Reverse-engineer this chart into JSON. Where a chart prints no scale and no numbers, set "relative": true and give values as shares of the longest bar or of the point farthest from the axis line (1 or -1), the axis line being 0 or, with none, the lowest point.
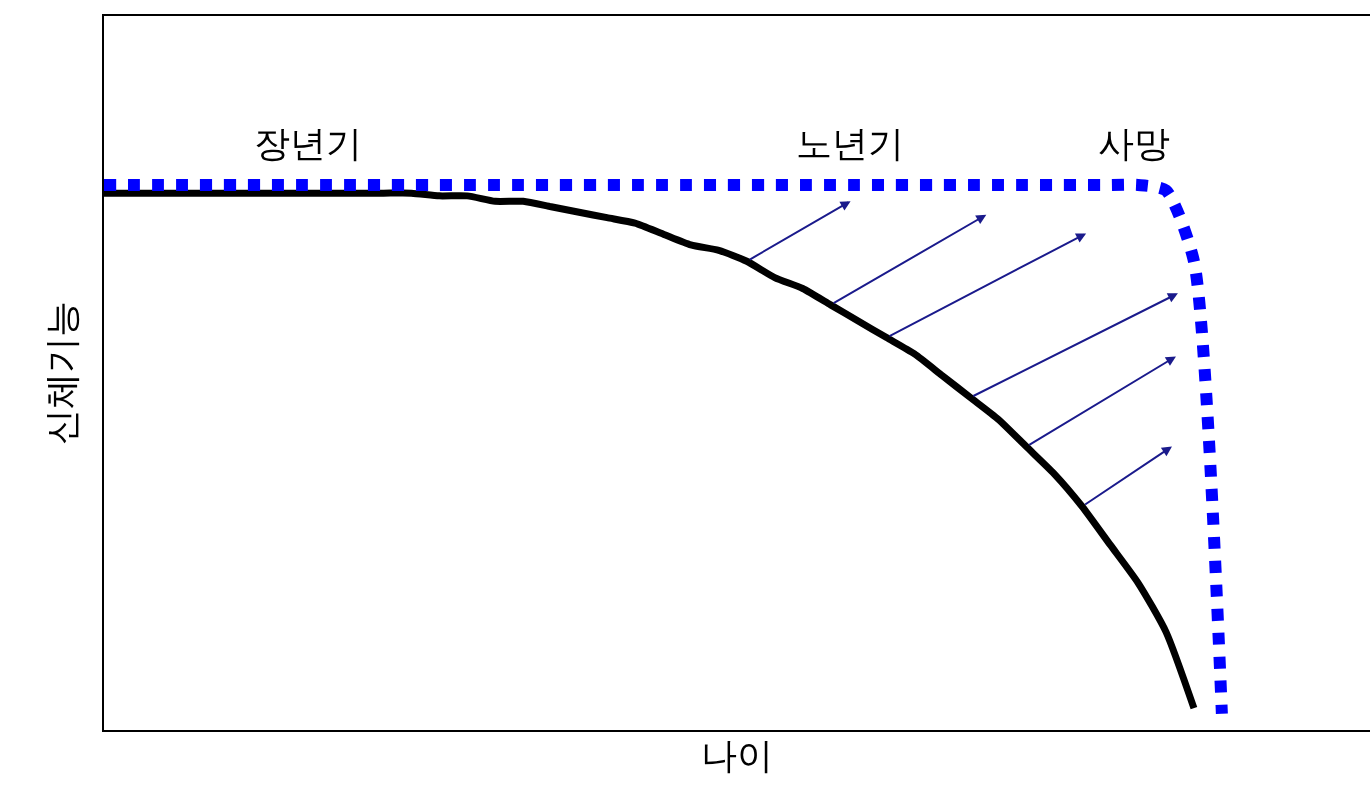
{
  "chart_data": {
    "type": "line",
    "relative": true,
    "xlabel": "나이",
    "ylabel": "신체기능",
    "tick_labels": false,
    "categories": [
      null,
      null,
      null,
      null,
      null,
      null,
      null,
      null,
      null,
      null,
      null,
      null,
      null,
      null,
      null,
      null,
      null,
      null,
      null,
      null,
      null,
      null,
      null,
      null,
      null,
      null,
      null,
      null,
      null,
      null,
      null,
      null,
      null,
      null,
      null,
      null,
      null,
      null,
      null,
      null,
      null,
      null,
      null,
      null,
      null,
      null
    ],
    "series": [
      {
        "color": "#000000",
        "line_style": "solid",
        "values": [
          0.985,
          0.985,
          0.985,
          0.985,
          0.985,
          0.985,
          0.985,
          0.985,
          0.985,
          0.985,
          0.985,
          0.985,
          0.98,
          0.98,
          0.97,
          0.97,
          0.96,
          0.95,
          0.94,
          0.93,
          0.91,
          0.89,
          0.88,
          0.86,
          0.83,
          0.81,
          0.78,
          0.75,
          0.72,
          0.69,
          0.65,
          0.61,
          0.57,
          0.52,
          0.47,
          0.41,
          0.34,
          0.27,
          0.18,
          0.04,
          null,
          null,
          null,
          null,
          null,
          null
        ]
      },
      {
        "color": "#0000ff",
        "line_style": "dotted",
        "values": [
          1,
          1,
          1,
          1,
          1,
          1,
          1,
          1,
          1,
          1,
          1,
          1,
          1,
          1,
          1,
          1,
          1,
          1,
          1,
          1,
          1,
          1,
          1,
          1,
          1,
          1,
          1,
          1,
          1,
          1,
          1,
          1,
          1,
          1,
          1,
          1,
          1,
          1,
          0.99,
          0.86,
          0.03,
          null,
          null,
          null,
          null,
          null
        ]
      }
    ],
    "annotations": [
      "장년기",
      "노년기",
      "사망"
    ]
  }
}
